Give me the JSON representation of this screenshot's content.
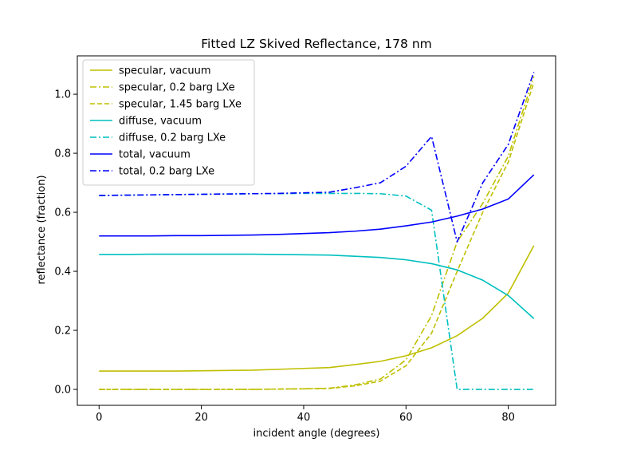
{
  "chart_data": {
    "type": "line",
    "title": "Fitted LZ Skived Reflectance, 178 nm",
    "xlabel": "incident angle (degrees)",
    "ylabel": "reflectance (fraction)",
    "xlim": [
      -4.25,
      89.25
    ],
    "ylim": [
      -0.054,
      1.13
    ],
    "xticks": [
      0,
      20,
      40,
      60,
      80
    ],
    "yticks": [
      0.0,
      0.2,
      0.4,
      0.6,
      0.8,
      1.0
    ],
    "xtick_labels": [
      "0",
      "20",
      "40",
      "60",
      "80"
    ],
    "ytick_labels": [
      "0.0",
      "0.2",
      "0.4",
      "0.6",
      "0.8",
      "1.0"
    ],
    "grid": false,
    "legend_position": "upper-left",
    "x": [
      0,
      5,
      10,
      15,
      20,
      25,
      30,
      35,
      40,
      45,
      50,
      55,
      60,
      65,
      70,
      75,
      80,
      85
    ],
    "series": [
      {
        "name": "specular, vacuum",
        "color": "#bfbf00",
        "dash": "solid",
        "values": [
          0.062,
          0.062,
          0.062,
          0.062,
          0.063,
          0.064,
          0.065,
          0.068,
          0.071,
          0.074,
          0.084,
          0.095,
          0.114,
          0.141,
          0.182,
          0.241,
          0.326,
          0.487
        ]
      },
      {
        "name": "specular, 0.2 barg LXe",
        "color": "#bfbf00",
        "dash": "dashdot",
        "values": [
          0.0,
          0.0,
          0.0,
          0.0,
          0.0,
          0.0,
          0.0,
          0.001,
          0.002,
          0.004,
          0.015,
          0.035,
          0.1,
          0.25,
          0.5,
          0.63,
          0.79,
          1.06
        ]
      },
      {
        "name": "specular, 1.45 barg LXe",
        "color": "#bfbf00",
        "dash": "dashed",
        "values": [
          0.0,
          0.0,
          0.0,
          0.0,
          0.0,
          0.0,
          0.0,
          0.001,
          0.002,
          0.003,
          0.012,
          0.028,
          0.08,
          0.19,
          0.4,
          0.6,
          0.77,
          1.04
        ]
      },
      {
        "name": "diffuse, vacuum",
        "color": "#00bfbf",
        "dash": "solid",
        "values": [
          0.457,
          0.457,
          0.458,
          0.458,
          0.458,
          0.458,
          0.458,
          0.457,
          0.456,
          0.455,
          0.451,
          0.447,
          0.439,
          0.426,
          0.405,
          0.37,
          0.318,
          0.24
        ]
      },
      {
        "name": "diffuse, 0.2 barg LXe",
        "color": "#00bfbf",
        "dash": "dashdot",
        "values": [
          0.657,
          0.658,
          0.659,
          0.66,
          0.661,
          0.662,
          0.663,
          0.663,
          0.664,
          0.664,
          0.664,
          0.663,
          0.655,
          0.607,
          0.0,
          0.0,
          0.0,
          0.0
        ]
      },
      {
        "name": "total, vacuum",
        "color": "#0000ff",
        "dash": "solid",
        "values": [
          0.52,
          0.52,
          0.52,
          0.521,
          0.521,
          0.522,
          0.523,
          0.525,
          0.528,
          0.531,
          0.536,
          0.543,
          0.554,
          0.567,
          0.587,
          0.611,
          0.645,
          0.727
        ]
      },
      {
        "name": "total, 0.2 barg LXe",
        "color": "#0000ff",
        "dash": "dashdot",
        "values": [
          0.657,
          0.658,
          0.659,
          0.66,
          0.661,
          0.662,
          0.663,
          0.664,
          0.666,
          0.668,
          0.683,
          0.7,
          0.756,
          0.857,
          0.5,
          0.7,
          0.83,
          1.075
        ]
      }
    ]
  }
}
